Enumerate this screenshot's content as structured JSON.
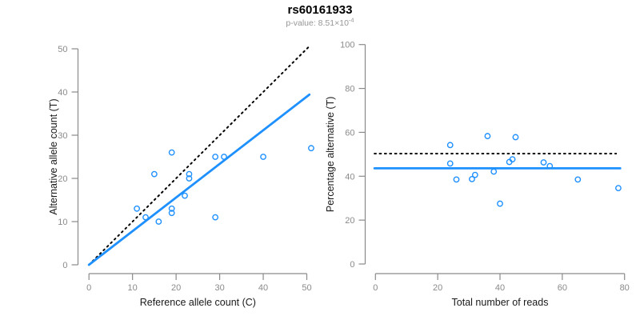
{
  "header": {
    "title": "rs60161933",
    "subtitle_base": "p-value: 8.51×10",
    "subtitle_exponent": "-4"
  },
  "colors": {
    "accent_blue": "#1E90FF",
    "identity_line": "#000000",
    "axis_line": "#8a8a8a",
    "tick_label": "#8a8a8a",
    "axis_title": "#1a1a1a",
    "title": "#000000",
    "subtitle": "#969696",
    "background": "#ffffff"
  },
  "chart_data": [
    {
      "type": "scatter",
      "name": "allele-count-scatter",
      "xlabel": "Reference allele count (C)",
      "ylabel": "Alternative allele count (T)",
      "xlim": [
        0,
        50
      ],
      "ylim": [
        0,
        50
      ],
      "xticks": [
        0,
        10,
        20,
        30,
        40,
        50
      ],
      "yticks": [
        0,
        10,
        20,
        30,
        40,
        50
      ],
      "grid": false,
      "legend": null,
      "points": [
        [
          11,
          13
        ],
        [
          13,
          11
        ],
        [
          15,
          21
        ],
        [
          16,
          10
        ],
        [
          19,
          12
        ],
        [
          19,
          13
        ],
        [
          19,
          26
        ],
        [
          22,
          16
        ],
        [
          23,
          20
        ],
        [
          23,
          21
        ],
        [
          29,
          11
        ],
        [
          29,
          25
        ],
        [
          31,
          25
        ],
        [
          40,
          25
        ],
        [
          51,
          27
        ]
      ],
      "lines": [
        {
          "name": "identity-line",
          "style": "dotted",
          "x1": 0,
          "y1": 0,
          "x2": 50.6,
          "y2": 50.6
        },
        {
          "name": "fit-line",
          "style": "solid",
          "x1": 0,
          "y1": 0,
          "x2": 50.6,
          "y2": 39.4
        }
      ]
    },
    {
      "type": "scatter",
      "name": "percentage-vs-reads-scatter",
      "xlabel": "Total number of reads",
      "ylabel": "Percentage alternative (T)",
      "xlim": [
        0,
        80
      ],
      "ylim": [
        0,
        100
      ],
      "xticks": [
        0,
        20,
        40,
        60,
        80
      ],
      "yticks": [
        0,
        20,
        40,
        60,
        80,
        100
      ],
      "grid": false,
      "legend": null,
      "points": [
        [
          24,
          45.8
        ],
        [
          24,
          54.2
        ],
        [
          26,
          38.5
        ],
        [
          31,
          38.7
        ],
        [
          32,
          40.6
        ],
        [
          36,
          58.3
        ],
        [
          38,
          42.1
        ],
        [
          40,
          27.5
        ],
        [
          43,
          46.5
        ],
        [
          44,
          47.7
        ],
        [
          45,
          57.8
        ],
        [
          54,
          46.3
        ],
        [
          56,
          44.6
        ],
        [
          65,
          38.5
        ],
        [
          78,
          34.6
        ]
      ],
      "lines": [
        {
          "name": "expected-50pct-line",
          "style": "dotted",
          "x1": -0.3,
          "y1": 50.3,
          "x2": 77.3,
          "y2": 50.3
        },
        {
          "name": "mean-percentage-line",
          "style": "solid",
          "x1": -0.3,
          "y1": 43.6,
          "x2": 78.6,
          "y2": 43.6
        }
      ]
    }
  ]
}
